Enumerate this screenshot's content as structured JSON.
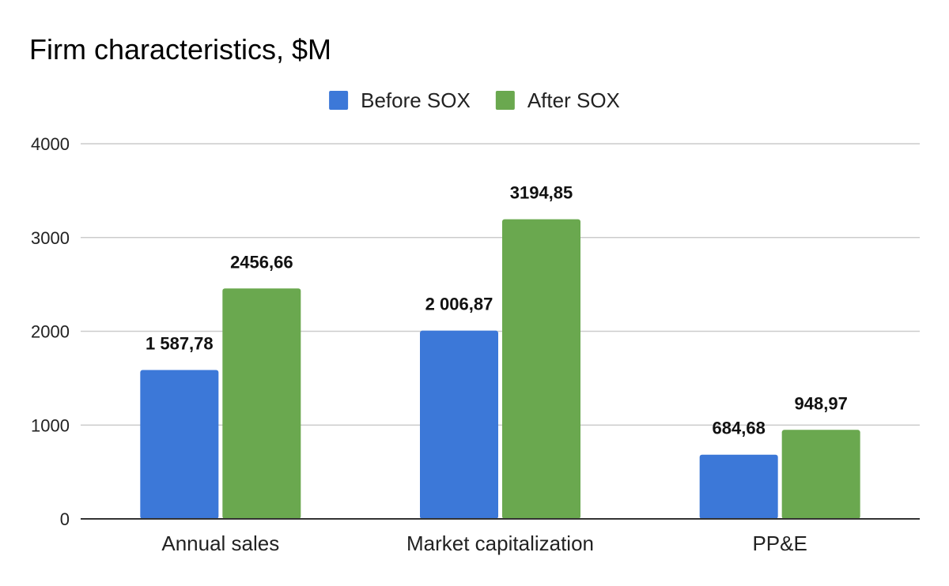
{
  "chart_data": {
    "type": "bar",
    "title": "Firm characteristics, $M",
    "categories": [
      "Annual sales",
      "Market capitalization",
      "PP&E"
    ],
    "series": [
      {
        "name": "Before SOX",
        "color": "#3c78d8",
        "values": [
          1587.78,
          2006.87,
          684.68
        ],
        "labels": [
          "1 587,78",
          "2 006,87",
          "684,68"
        ]
      },
      {
        "name": "After SOX",
        "color": "#6aa84f",
        "values": [
          2456.66,
          3194.85,
          948.97
        ],
        "labels": [
          "2456,66",
          "3194,85",
          "948,97"
        ]
      }
    ],
    "ylim": [
      0,
      4000
    ],
    "yticks": [
      0,
      1000,
      2000,
      3000,
      4000
    ],
    "xlabel": "",
    "ylabel": "",
    "grid": true,
    "legend": "top-center"
  }
}
